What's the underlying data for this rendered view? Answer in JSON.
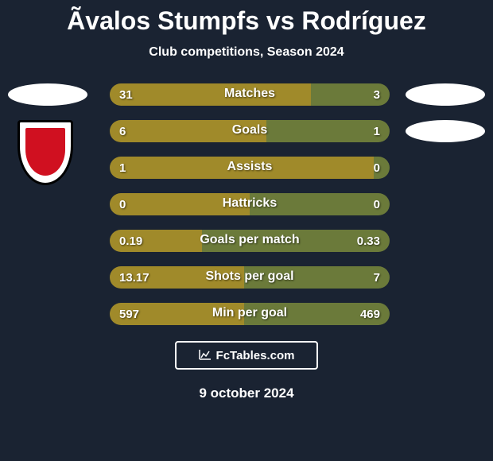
{
  "header": {
    "title": "Ãvalos Stumpfs vs Rodríguez",
    "subtitle": "Club competitions, Season 2024"
  },
  "colors": {
    "background": "#1a2332",
    "left_bar": "#a08a2a",
    "right_bar": "#6b7a3a",
    "text": "#ffffff",
    "badge_red": "#d01020"
  },
  "stats": [
    {
      "label": "Matches",
      "left_val": "31",
      "right_val": "3",
      "left_pct": 72
    },
    {
      "label": "Goals",
      "left_val": "6",
      "right_val": "1",
      "left_pct": 56
    },
    {
      "label": "Assists",
      "left_val": "1",
      "right_val": "0",
      "left_pct": 99
    },
    {
      "label": "Hattricks",
      "left_val": "0",
      "right_val": "0",
      "left_pct": 50
    },
    {
      "label": "Goals per match",
      "left_val": "0.19",
      "right_val": "0.33",
      "left_pct": 33
    },
    {
      "label": "Shots per goal",
      "left_val": "13.17",
      "right_val": "7",
      "left_pct": 48
    },
    {
      "label": "Min per goal",
      "left_val": "597",
      "right_val": "469",
      "left_pct": 48
    }
  ],
  "footer": {
    "brand": "FcTables.com",
    "date": "9 october 2024"
  }
}
